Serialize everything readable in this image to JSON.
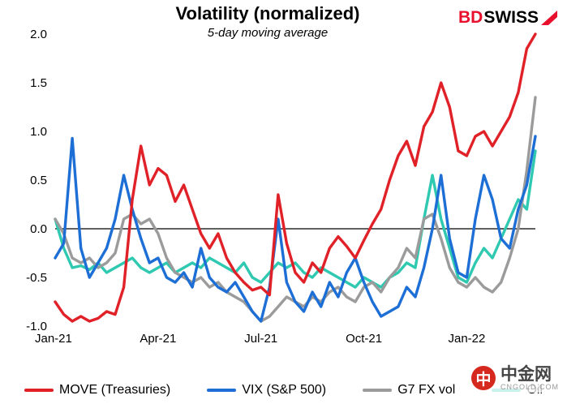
{
  "header": {
    "title": "Volatility (normalized)",
    "subtitle": "5-day moving average",
    "logo_bd": "BD",
    "logo_swiss": "SWISS",
    "logo_arrow_color": "#e8102c"
  },
  "watermark": {
    "icon_char": "中",
    "name": "中金网",
    "sub": "CNGOLD.COM",
    "icon_color": "#d5281e"
  },
  "chart_data": {
    "type": "line",
    "title": "Volatility (normalized)",
    "subtitle": "5-day moving average",
    "xlabel": "",
    "ylabel": "",
    "xlim": [
      0,
      14
    ],
    "ylim": [
      -1.0,
      2.0
    ],
    "grid": false,
    "zero_line": true,
    "legend_position": "bottom",
    "x_start_month": 0,
    "x_step_months": 0.25,
    "x_tick_positions": [
      0,
      3,
      6,
      9,
      12
    ],
    "x_tick_labels": [
      "Jan-21",
      "Apr-21",
      "Jul-21",
      "Oct-21",
      "Jan-22"
    ],
    "y_ticks": [
      2.0,
      1.5,
      1.0,
      0.5,
      0.0,
      -0.5,
      -1.0
    ],
    "series": [
      {
        "name": "MOVE (Treasuries)",
        "color": "#e02128",
        "values": [
          -0.75,
          -0.88,
          -0.95,
          -0.9,
          -0.95,
          -0.92,
          -0.85,
          -0.88,
          -0.6,
          0.3,
          0.85,
          0.45,
          0.62,
          0.55,
          0.28,
          0.45,
          0.2,
          -0.05,
          -0.2,
          -0.05,
          -0.3,
          -0.45,
          -0.55,
          -0.63,
          -0.6,
          -0.68,
          0.35,
          -0.15,
          -0.45,
          -0.55,
          -0.35,
          -0.45,
          -0.2,
          -0.08,
          -0.18,
          -0.3,
          -0.12,
          0.05,
          0.2,
          0.5,
          0.75,
          0.9,
          0.65,
          1.05,
          1.2,
          1.5,
          1.25,
          0.8,
          0.75,
          0.95,
          1.0,
          0.85,
          1.0,
          1.15,
          1.4,
          1.85,
          2.0
        ]
      },
      {
        "name": "VIX (S&P 500)",
        "color": "#1d6fd6",
        "values": [
          -0.3,
          -0.15,
          0.93,
          -0.2,
          -0.5,
          -0.35,
          -0.2,
          0.1,
          0.55,
          0.2,
          -0.1,
          -0.35,
          -0.3,
          -0.5,
          -0.55,
          -0.45,
          -0.6,
          -0.2,
          -0.5,
          -0.6,
          -0.65,
          -0.55,
          -0.7,
          -0.85,
          -0.95,
          -0.6,
          0.1,
          -0.55,
          -0.75,
          -0.85,
          -0.65,
          -0.8,
          -0.55,
          -0.7,
          -0.45,
          -0.3,
          -0.55,
          -0.75,
          -0.9,
          -0.85,
          -0.8,
          -0.6,
          -0.7,
          -0.4,
          0.0,
          0.55,
          -0.1,
          -0.45,
          -0.5,
          0.1,
          0.55,
          0.3,
          -0.1,
          -0.2,
          0.2,
          0.45,
          0.95
        ]
      },
      {
        "name": "G7 FX vol",
        "color": "#9b9b9b",
        "values": [
          0.1,
          -0.05,
          -0.3,
          -0.35,
          -0.3,
          -0.4,
          -0.35,
          -0.25,
          0.1,
          0.15,
          0.05,
          0.1,
          -0.05,
          -0.3,
          -0.45,
          -0.5,
          -0.55,
          -0.5,
          -0.6,
          -0.55,
          -0.65,
          -0.7,
          -0.75,
          -0.85,
          -0.95,
          -0.9,
          -0.8,
          -0.7,
          -0.75,
          -0.8,
          -0.7,
          -0.75,
          -0.65,
          -0.6,
          -0.7,
          -0.75,
          -0.6,
          -0.55,
          -0.65,
          -0.5,
          -0.4,
          -0.2,
          -0.3,
          0.1,
          0.15,
          -0.1,
          -0.4,
          -0.55,
          -0.6,
          -0.5,
          -0.6,
          -0.65,
          -0.55,
          -0.3,
          0.0,
          0.6,
          1.35
        ]
      },
      {
        "name": "Oil",
        "color": "#2fc8b0",
        "values": [
          0.1,
          -0.2,
          -0.4,
          -0.38,
          -0.42,
          -0.35,
          -0.45,
          -0.4,
          -0.35,
          -0.3,
          -0.4,
          -0.45,
          -0.4,
          -0.35,
          -0.45,
          -0.4,
          -0.35,
          -0.4,
          -0.3,
          -0.35,
          -0.4,
          -0.45,
          -0.35,
          -0.5,
          -0.55,
          -0.45,
          -0.35,
          -0.4,
          -0.35,
          -0.45,
          -0.5,
          -0.4,
          -0.45,
          -0.5,
          -0.55,
          -0.6,
          -0.5,
          -0.55,
          -0.6,
          -0.5,
          -0.45,
          -0.35,
          -0.4,
          0.1,
          0.55,
          0.1,
          -0.2,
          -0.5,
          -0.55,
          -0.35,
          -0.2,
          -0.3,
          -0.1,
          0.1,
          0.3,
          0.2,
          0.8
        ]
      }
    ]
  }
}
